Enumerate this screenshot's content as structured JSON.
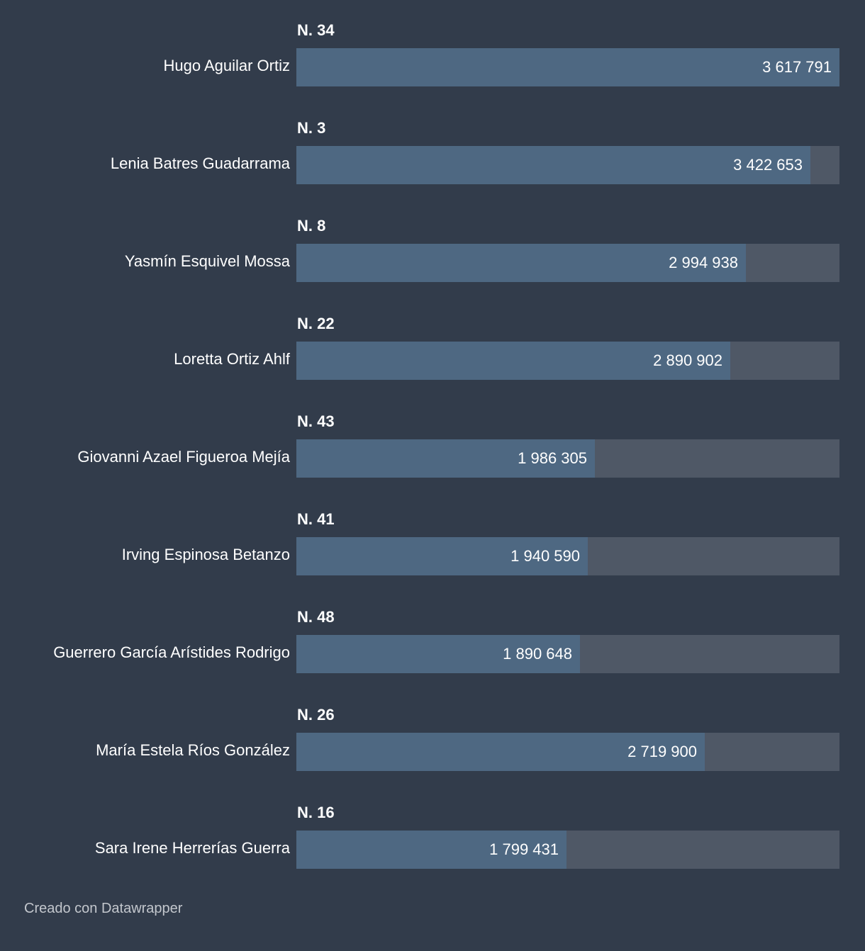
{
  "colors": {
    "background": "#323c4b",
    "bar": "#4e6882",
    "track": "#4f5866",
    "text": "#ffffff",
    "footer": "#c3c7cd"
  },
  "chart_data": {
    "type": "bar",
    "orientation": "horizontal",
    "xlim": [
      0,
      3617791
    ],
    "rows": [
      {
        "group": "N. 34",
        "name": "Hugo Aguilar Ortiz",
        "value": 3617791,
        "label": "3 617 791"
      },
      {
        "group": "N. 3",
        "name": "Lenia Batres Guadarrama",
        "value": 3422653,
        "label": "3 422 653"
      },
      {
        "group": "N. 8",
        "name": "Yasmín Esquivel Mossa",
        "value": 2994938,
        "label": "2 994 938"
      },
      {
        "group": "N. 22",
        "name": "Loretta Ortiz Ahlf",
        "value": 2890902,
        "label": "2 890 902"
      },
      {
        "group": "N. 43",
        "name": "Giovanni Azael Figueroa Mejía",
        "value": 1986305,
        "label": "1 986 305"
      },
      {
        "group": "N. 41",
        "name": "Irving Espinosa Betanzo",
        "value": 1940590,
        "label": "1 940 590"
      },
      {
        "group": "N. 48",
        "name": "Guerrero García Arístides Rodrigo",
        "value": 1890648,
        "label": "1 890 648"
      },
      {
        "group": "N. 26",
        "name": "María Estela Ríos González",
        "value": 2719900,
        "label": "2 719 900"
      },
      {
        "group": "N. 16",
        "name": "Sara Irene Herrerías Guerra",
        "value": 1799431,
        "label": "1 799 431"
      }
    ]
  },
  "footer": {
    "credit": "Creado con Datawrapper"
  }
}
